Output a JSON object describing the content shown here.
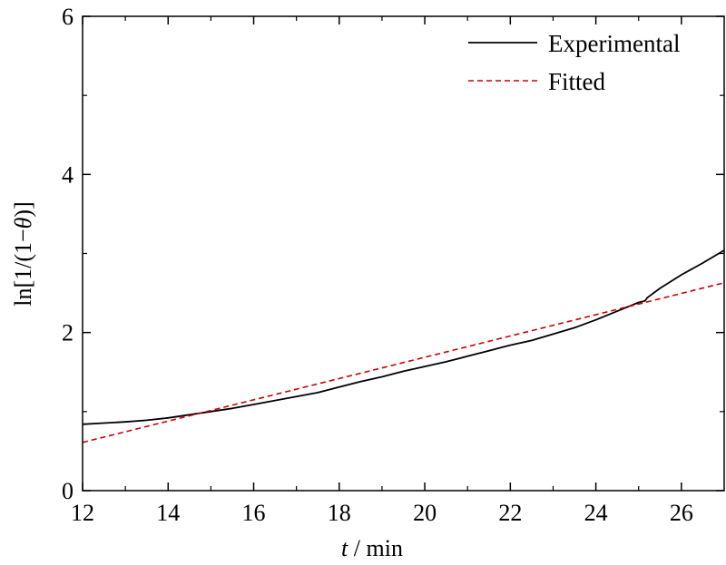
{
  "chart_data": {
    "type": "line",
    "title": "",
    "xlabel_italic": "t",
    "xlabel_rest": " / min",
    "ylabel_parts": [
      "ln[1/(1−",
      "θ",
      ")]"
    ],
    "xlim": [
      12,
      27
    ],
    "ylim": [
      0,
      6
    ],
    "xticks": [
      12,
      14,
      16,
      18,
      20,
      22,
      24,
      26
    ],
    "yticks": [
      0,
      2,
      4,
      6
    ],
    "grid": false,
    "legend_position": "top-right",
    "series": [
      {
        "name": "Experimental",
        "color": "#000000",
        "style": "solid",
        "x": [
          12.0,
          12.5,
          13.0,
          13.5,
          14.0,
          14.5,
          15.0,
          15.5,
          16.0,
          16.5,
          17.0,
          17.5,
          18.0,
          18.5,
          19.0,
          19.5,
          20.0,
          20.5,
          21.0,
          21.5,
          21.85,
          22.0,
          22.5,
          23.0,
          23.5,
          24.0,
          24.5,
          25.0,
          25.15,
          25.2,
          25.5,
          26.0,
          26.5,
          27.0
        ],
        "y": [
          0.84,
          0.855,
          0.87,
          0.89,
          0.92,
          0.96,
          1.0,
          1.04,
          1.09,
          1.14,
          1.19,
          1.24,
          1.31,
          1.38,
          1.44,
          1.51,
          1.57,
          1.63,
          1.7,
          1.77,
          1.82,
          1.84,
          1.9,
          1.98,
          2.06,
          2.16,
          2.27,
          2.38,
          2.4,
          2.44,
          2.56,
          2.73,
          2.88,
          3.04
        ]
      },
      {
        "name": "Fitted",
        "color": "#cc0000",
        "style": "dashed",
        "x": [
          12.0,
          27.0
        ],
        "y": [
          0.61,
          2.63
        ]
      }
    ]
  }
}
